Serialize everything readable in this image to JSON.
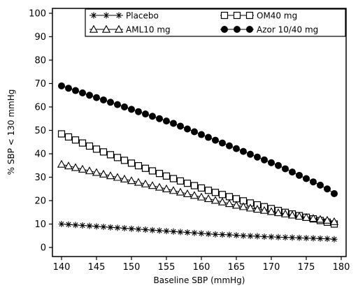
{
  "chart_data": {
    "type": "line",
    "title": "",
    "xlabel": "Baseline SBP (mmHg)",
    "ylabel": "% SBP < 130 mmHg",
    "xlim": [
      140,
      180
    ],
    "ylim": [
      0,
      100
    ],
    "xticks": [
      140,
      145,
      150,
      155,
      160,
      165,
      170,
      175,
      180
    ],
    "yticks": [
      0,
      10,
      20,
      30,
      40,
      50,
      60,
      70,
      80,
      90,
      100
    ],
    "grid": false,
    "legend_position": "top",
    "x": [
      140,
      141,
      142,
      143,
      144,
      145,
      146,
      147,
      148,
      149,
      150,
      151,
      152,
      153,
      154,
      155,
      156,
      157,
      158,
      159,
      160,
      161,
      162,
      163,
      164,
      165,
      166,
      167,
      168,
      169,
      170,
      171,
      172,
      173,
      174,
      175,
      176,
      177,
      178,
      179
    ],
    "series": [
      {
        "name": "Placebo",
        "marker": "star",
        "color": "#000000",
        "values": [
          10.0,
          9.8,
          9.6,
          9.4,
          9.2,
          9.0,
          8.8,
          8.6,
          8.4,
          8.2,
          8.0,
          7.8,
          7.6,
          7.4,
          7.2,
          7.0,
          6.8,
          6.6,
          6.4,
          6.2,
          6.0,
          5.8,
          5.6,
          5.5,
          5.4,
          5.2,
          5.0,
          4.9,
          4.8,
          4.6,
          4.5,
          4.4,
          4.3,
          4.2,
          4.1,
          4.0,
          3.9,
          3.8,
          3.7,
          3.5
        ]
      },
      {
        "name": "OM40 mg",
        "marker": "square",
        "color": "#000000",
        "values": [
          48.5,
          47.2,
          45.9,
          44.6,
          43.3,
          42.0,
          40.8,
          39.6,
          38.4,
          37.2,
          36.0,
          34.9,
          33.8,
          32.7,
          31.6,
          30.5,
          29.4,
          28.4,
          27.4,
          26.4,
          25.4,
          24.4,
          23.5,
          22.6,
          21.7,
          20.8,
          19.9,
          19.0,
          18.2,
          17.4,
          16.6,
          15.8,
          15.0,
          14.3,
          13.6,
          12.9,
          12.2,
          11.5,
          10.8,
          10.0
        ]
      },
      {
        "name": "AML10 mg",
        "marker": "triangle",
        "color": "#000000",
        "values": [
          35.5,
          34.8,
          34.1,
          33.4,
          32.7,
          32.0,
          31.3,
          30.6,
          29.9,
          29.2,
          28.5,
          27.8,
          27.1,
          26.4,
          25.7,
          25.0,
          24.3,
          23.6,
          22.9,
          22.2,
          21.5,
          20.8,
          20.1,
          19.4,
          18.7,
          18.0,
          17.4,
          16.8,
          16.3,
          15.8,
          15.3,
          14.8,
          14.3,
          13.8,
          13.3,
          12.8,
          12.4,
          12.0,
          11.6,
          11.0
        ]
      },
      {
        "name": "Azor 10/40 mg",
        "marker": "circle",
        "color": "#000000",
        "values": [
          69.0,
          68.0,
          67.0,
          66.0,
          65.0,
          64.0,
          63.0,
          62.0,
          61.0,
          60.0,
          59.0,
          58.0,
          57.0,
          56.0,
          55.0,
          54.0,
          53.0,
          51.8,
          50.6,
          49.4,
          48.2,
          47.0,
          45.8,
          44.6,
          43.4,
          42.2,
          41.0,
          39.8,
          38.6,
          37.4,
          36.2,
          35.0,
          33.6,
          32.2,
          30.8,
          29.4,
          28.0,
          26.6,
          25.0,
          23.0
        ]
      }
    ]
  }
}
